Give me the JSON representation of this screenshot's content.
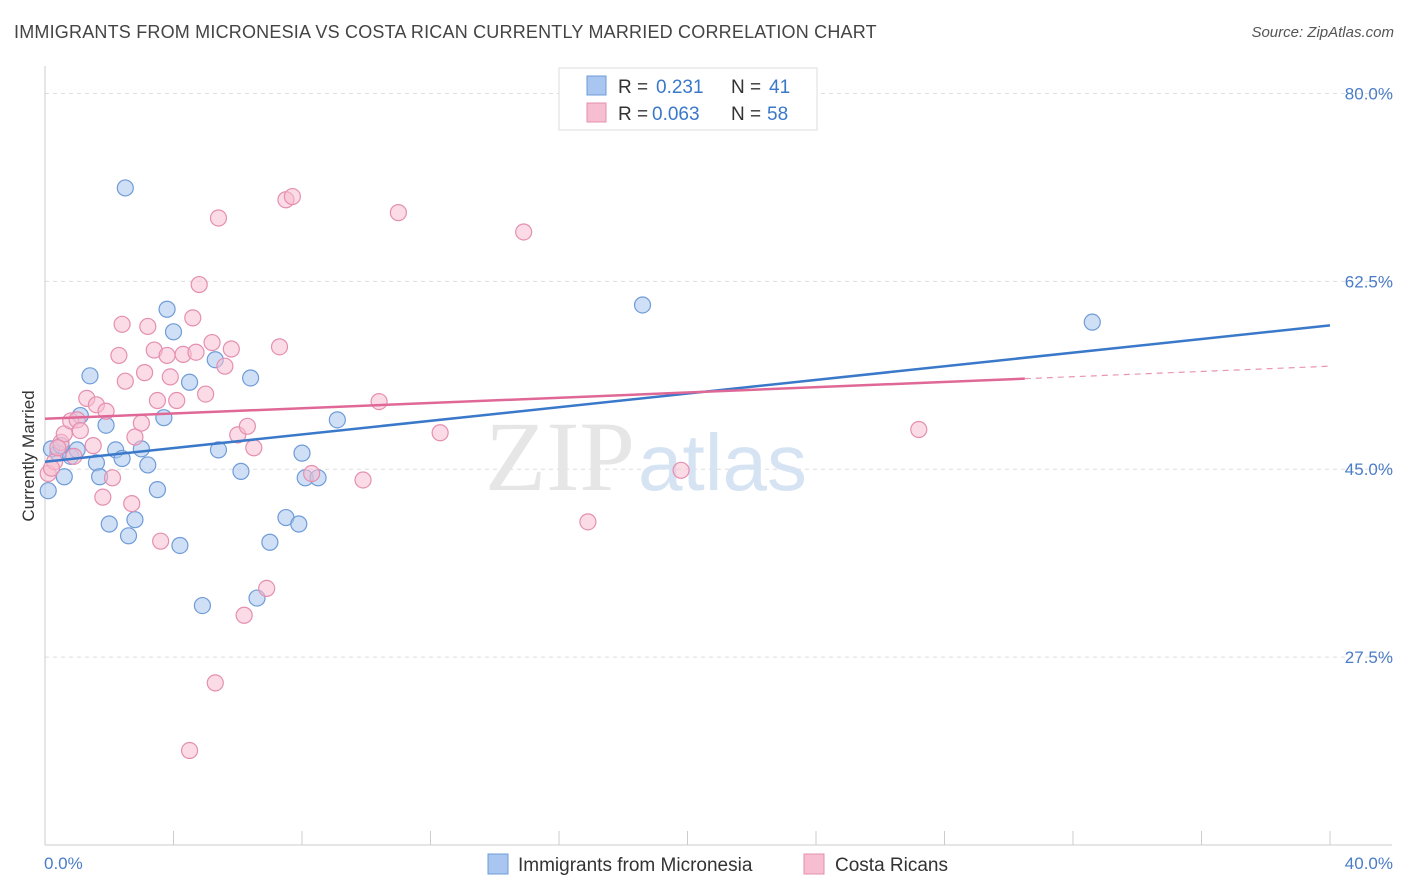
{
  "title": "IMMIGRANTS FROM MICRONESIA VS COSTA RICAN CURRENTLY MARRIED CORRELATION CHART",
  "source": "Source: ZipAtlas.com",
  "watermark": {
    "zip": "ZIP",
    "atlas": "atlas"
  },
  "colors": {
    "blue_fill": "#a8c6ef",
    "blue_stroke": "#6f9bd8",
    "blue_line": "#3a78c9",
    "pink_fill": "#f7bdd0",
    "pink_stroke": "#e58fb0",
    "pink_line": "#e06896",
    "grid": "#dddddd",
    "axis_text": "#4a7cc7"
  },
  "legend": {
    "r_label": "R =",
    "n_label": "N =",
    "series": [
      {
        "r": "0.231",
        "n": "41"
      },
      {
        "r": "0.063",
        "n": "58"
      }
    ]
  },
  "chart_data": {
    "type": "scatter",
    "title": "IMMIGRANTS FROM MICRONESIA VS COSTA RICAN CURRENTLY MARRIED CORRELATION CHART",
    "xlabel": "",
    "ylabel": "Currently Married",
    "xlim": [
      0,
      40
    ],
    "ylim": [
      10,
      82
    ],
    "x_tick_labels": [
      "0.0%",
      "40.0%"
    ],
    "y_ticks": [
      27.5,
      45.0,
      62.5,
      80.0
    ],
    "y_tick_labels": [
      "27.5%",
      "45.0%",
      "62.5%",
      "80.0%"
    ],
    "grid": true,
    "legend_position": "top-center",
    "series": [
      {
        "name": "Immigrants from Micronesia",
        "color": "blue",
        "R": 0.231,
        "N": 41,
        "trend": {
          "x": [
            0,
            40
          ],
          "y": [
            45.7,
            58.4
          ],
          "dashed_from": null
        },
        "points": [
          [
            0.1,
            43.0
          ],
          [
            0.4,
            46.5
          ],
          [
            0.6,
            44.3
          ],
          [
            0.8,
            46.2
          ],
          [
            1.0,
            46.8
          ],
          [
            1.1,
            50.0
          ],
          [
            1.4,
            53.7
          ],
          [
            1.6,
            45.6
          ],
          [
            1.7,
            44.3
          ],
          [
            1.9,
            49.1
          ],
          [
            2.0,
            39.9
          ],
          [
            2.2,
            46.8
          ],
          [
            2.4,
            46.0
          ],
          [
            2.6,
            38.8
          ],
          [
            2.8,
            40.3
          ],
          [
            3.0,
            46.9
          ],
          [
            3.2,
            45.4
          ],
          [
            3.5,
            43.1
          ],
          [
            3.7,
            49.8
          ],
          [
            3.8,
            59.9
          ],
          [
            4.0,
            57.8
          ],
          [
            4.2,
            37.9
          ],
          [
            4.5,
            53.1
          ],
          [
            4.9,
            32.3
          ],
          [
            5.3,
            55.2
          ],
          [
            5.4,
            46.8
          ],
          [
            6.1,
            44.8
          ],
          [
            6.4,
            53.5
          ],
          [
            6.6,
            33.0
          ],
          [
            7.0,
            38.2
          ],
          [
            7.5,
            40.5
          ],
          [
            7.9,
            39.9
          ],
          [
            8.0,
            46.5
          ],
          [
            8.1,
            44.2
          ],
          [
            8.5,
            44.2
          ],
          [
            9.1,
            49.6
          ],
          [
            2.5,
            71.2
          ],
          [
            18.6,
            60.3
          ],
          [
            32.6,
            58.7
          ],
          [
            0.2,
            46.9
          ],
          [
            0.5,
            47.2
          ]
        ]
      },
      {
        "name": "Costa Ricans",
        "color": "pink",
        "R": 0.063,
        "N": 58,
        "trend": {
          "x": [
            0,
            40
          ],
          "y": [
            49.7,
            54.6
          ],
          "dashed_from": 30.5
        },
        "points": [
          [
            0.1,
            44.6
          ],
          [
            0.3,
            45.7
          ],
          [
            0.5,
            47.5
          ],
          [
            0.6,
            48.3
          ],
          [
            0.8,
            49.5
          ],
          [
            0.9,
            46.2
          ],
          [
            1.0,
            49.6
          ],
          [
            1.1,
            48.6
          ],
          [
            1.3,
            51.6
          ],
          [
            1.5,
            47.2
          ],
          [
            1.6,
            51.0
          ],
          [
            1.8,
            42.4
          ],
          [
            1.9,
            50.4
          ],
          [
            2.1,
            44.2
          ],
          [
            2.3,
            55.6
          ],
          [
            2.4,
            58.5
          ],
          [
            2.5,
            53.2
          ],
          [
            2.7,
            41.8
          ],
          [
            2.8,
            48.0
          ],
          [
            3.0,
            49.3
          ],
          [
            3.1,
            54.0
          ],
          [
            3.2,
            58.3
          ],
          [
            3.4,
            56.1
          ],
          [
            3.5,
            51.4
          ],
          [
            3.6,
            38.3
          ],
          [
            3.8,
            55.6
          ],
          [
            3.9,
            53.6
          ],
          [
            4.1,
            51.4
          ],
          [
            4.3,
            55.7
          ],
          [
            4.5,
            18.8
          ],
          [
            4.6,
            59.1
          ],
          [
            4.7,
            55.9
          ],
          [
            4.8,
            62.2
          ],
          [
            5.0,
            52.0
          ],
          [
            5.2,
            56.8
          ],
          [
            5.3,
            25.1
          ],
          [
            5.4,
            68.4
          ],
          [
            5.6,
            54.6
          ],
          [
            5.8,
            56.2
          ],
          [
            6.0,
            48.2
          ],
          [
            6.2,
            31.4
          ],
          [
            6.3,
            49.0
          ],
          [
            6.5,
            47.0
          ],
          [
            6.9,
            33.9
          ],
          [
            7.3,
            56.4
          ],
          [
            7.5,
            70.1
          ],
          [
            7.7,
            70.4
          ],
          [
            8.3,
            44.6
          ],
          [
            9.9,
            44.0
          ],
          [
            10.4,
            51.3
          ],
          [
            11.0,
            68.9
          ],
          [
            12.3,
            48.4
          ],
          [
            14.9,
            67.1
          ],
          [
            16.9,
            40.1
          ],
          [
            19.8,
            44.9
          ],
          [
            27.2,
            48.7
          ],
          [
            0.2,
            45.1
          ],
          [
            0.4,
            47.0
          ]
        ]
      }
    ]
  },
  "bottom_legend": [
    "Immigrants from Micronesia",
    "Costa Ricans"
  ]
}
